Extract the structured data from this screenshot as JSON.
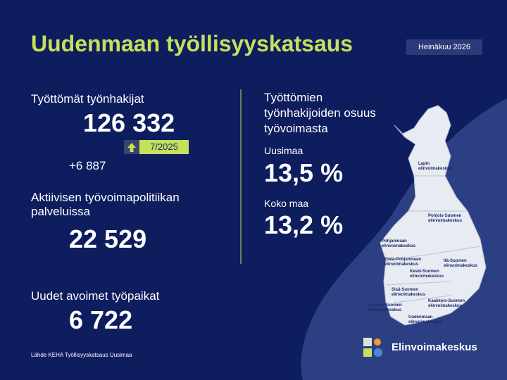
{
  "header": {
    "title": "Uudenmaan työllisyyskatsaus",
    "period": "Heinäkuu 2026"
  },
  "left": {
    "unemployed": {
      "label": "Työttömät työnhakijat",
      "value": "126 332",
      "compare_period": "7/2025",
      "change": "+6 887"
    },
    "active_services": {
      "label": "Aktiivisen työvoimapolitiikan palveluissa",
      "value": "22 529"
    },
    "vacancies": {
      "label": "Uudet avoimet työpaikat",
      "value": "6 722"
    }
  },
  "right": {
    "heading": "Työttömien työnhakijoiden osuus työvoimasta",
    "regions": [
      {
        "name": "Uusimaa",
        "value": "13,5 %"
      },
      {
        "name": "Koko maa",
        "value": "13,2 %"
      }
    ]
  },
  "map": {
    "labels": [
      "Lapin elinvoimakeskus",
      "Pohjois-Suomen elinvoimakeskus",
      "Pohjanmaan elinvoimakeskus",
      "Etelä-Pohjanmaan elinvoimakeskus",
      "Itä-Suomen elinvoimakeskus",
      "Keski-Suomen elinvoimakeskus",
      "Sisä-Suomen elinvoimakeskus",
      "Kaakkois-Suomen elinvoimakeskus",
      "Lounais-Suomen elinvoimakeskus",
      "Uudenmaan elinvoimakeskus"
    ]
  },
  "footer": {
    "source": "Lähde KEHA Työllisyyskatsaus Uusimaa",
    "logo": "Elinvoimakeskus"
  }
}
